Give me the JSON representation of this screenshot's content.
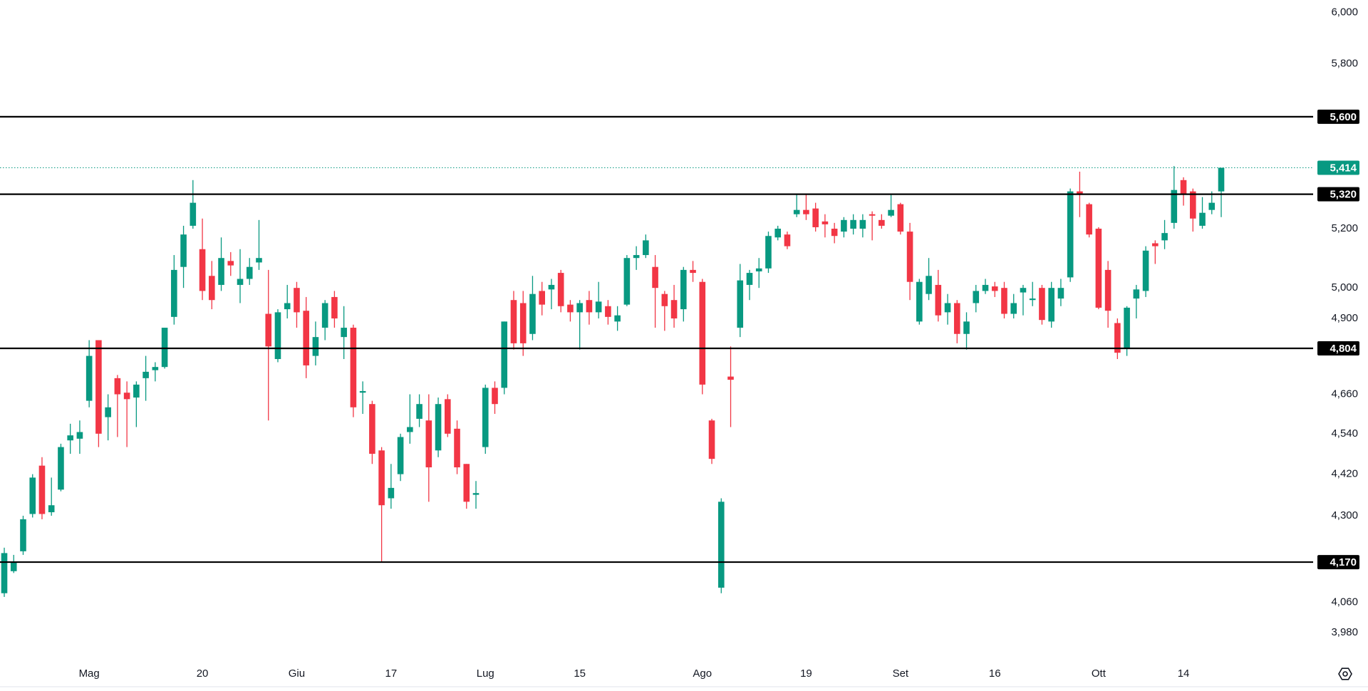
{
  "chart_data": {
    "type": "candlestick",
    "log_scale": true,
    "up_color": "#089981",
    "down_color": "#f23645",
    "level_color": "#000000",
    "last_price_color": "#089981",
    "ylim": [
      3900,
      6050
    ],
    "yticks": [
      {
        "value": 6000,
        "label": "6,000"
      },
      {
        "value": 5800,
        "label": "5,800"
      },
      {
        "value": 5200,
        "label": "5,200"
      },
      {
        "value": 5000,
        "label": "5,000"
      },
      {
        "value": 4900,
        "label": "4,900"
      },
      {
        "value": 4660,
        "label": "4,660"
      },
      {
        "value": 4540,
        "label": "4,540"
      },
      {
        "value": 4420,
        "label": "4,420"
      },
      {
        "value": 4300,
        "label": "4,300"
      },
      {
        "value": 4060,
        "label": "4,060"
      },
      {
        "value": 3980,
        "label": "3,980"
      }
    ],
    "levels": [
      {
        "value": 5600,
        "label": "5,600"
      },
      {
        "value": 5320,
        "label": "5,320"
      },
      {
        "value": 4804,
        "label": "4,804"
      },
      {
        "value": 4170,
        "label": "4,170"
      }
    ],
    "last_price": {
      "value": 5414,
      "label": "5,414"
    },
    "categories": [
      null,
      null,
      null,
      null,
      null,
      null,
      null,
      null,
      null,
      "Mag",
      null,
      null,
      null,
      null,
      null,
      null,
      null,
      null,
      null,
      null,
      null,
      "20",
      null,
      null,
      null,
      null,
      null,
      null,
      null,
      null,
      null,
      "Giu",
      null,
      null,
      null,
      null,
      null,
      null,
      null,
      null,
      null,
      "17",
      null,
      null,
      null,
      null,
      null,
      null,
      null,
      null,
      null,
      "Lug",
      null,
      null,
      null,
      null,
      null,
      null,
      null,
      null,
      null,
      "15",
      null,
      null,
      null,
      null,
      null,
      null,
      null,
      null,
      null,
      null,
      null,
      null,
      "Ago",
      null,
      null,
      null,
      null,
      null,
      null,
      null,
      null,
      null,
      null,
      "19",
      null,
      null,
      null,
      null,
      null,
      null,
      null,
      null,
      null,
      "Set",
      null,
      null,
      null,
      null,
      null,
      null,
      null,
      null,
      null,
      "16",
      null,
      null,
      null,
      null,
      null,
      null,
      null,
      null,
      null,
      null,
      "Ott",
      null,
      null,
      null,
      null,
      null,
      null,
      null,
      null,
      "14",
      null,
      null,
      null,
      null
    ],
    "open": [
      4085,
      4145,
      4200,
      4305,
      4445,
      4310,
      4375,
      4520,
      4525,
      4640,
      4830,
      4590,
      4710,
      4665,
      4650,
      4710,
      4735,
      4745,
      4905,
      5070,
      5210,
      5130,
      5040,
      5010,
      5090,
      5010,
      5030,
      5085,
      4915,
      4770,
      4930,
      5000,
      4925,
      4780,
      4870,
      4970,
      4840,
      4870,
      4665,
      4630,
      4490,
      4350,
      4420,
      4545,
      4585,
      4580,
      4490,
      4645,
      4555,
      4450,
      4360,
      4500,
      4680,
      4680,
      4960,
      4950,
      4850,
      4990,
      4995,
      5050,
      4945,
      4920,
      4960,
      4920,
      4940,
      4890,
      4945,
      5100,
      5110,
      5070,
      4980,
      4960,
      4930,
      5060,
      5020,
      4580,
      4100,
      4715,
      4870,
      5010,
      5055,
      5065,
      5170,
      5180,
      5250,
      5265,
      5270,
      5225,
      5200,
      5190,
      5200,
      5200,
      5250,
      5230,
      5245,
      5285,
      5190,
      4890,
      4980,
      5010,
      4920,
      4950,
      4850,
      4950,
      4990,
      5005,
      5000,
      4915,
      4985,
      4960,
      5000,
      4890,
      4965,
      5035,
      5330,
      5285,
      5200,
      5060,
      4885,
      4805,
      4965,
      4990,
      5150,
      5160,
      5220,
      5370,
      5330,
      5210,
      5265,
      5330
    ],
    "high": [
      4210,
      4190,
      4300,
      4420,
      4470,
      4410,
      4510,
      4570,
      4580,
      4830,
      4830,
      4660,
      4720,
      4700,
      4700,
      4780,
      4760,
      4870,
      5110,
      5210,
      5370,
      5235,
      5090,
      5170,
      5120,
      5130,
      5100,
      5230,
      5060,
      4930,
      5010,
      5020,
      4970,
      4890,
      4960,
      4990,
      4940,
      4880,
      4700,
      4640,
      4500,
      4450,
      4540,
      4660,
      4660,
      4660,
      4650,
      4660,
      4580,
      4450,
      4400,
      4690,
      4700,
      4890,
      4990,
      4990,
      5040,
      5020,
      5030,
      5060,
      4960,
      4960,
      4990,
      5020,
      4960,
      4940,
      5110,
      5140,
      5180,
      5110,
      4990,
      5010,
      5070,
      5090,
      5030,
      4585,
      4350,
      4810,
      5080,
      5060,
      5100,
      5190,
      5210,
      5190,
      5320,
      5320,
      5290,
      5250,
      5220,
      5240,
      5250,
      5250,
      5260,
      5250,
      5320,
      5290,
      5220,
      5030,
      5100,
      5060,
      4980,
      4960,
      4920,
      5010,
      5030,
      5020,
      5020,
      4980,
      5010,
      5020,
      5010,
      5020,
      5030,
      5340,
      5400,
      5290,
      5205,
      5090,
      4900,
      4940,
      5010,
      5140,
      5160,
      5230,
      5420,
      5380,
      5340,
      5310,
      5330,
      5414
    ],
    "low": [
      4075,
      4140,
      4190,
      4295,
      4290,
      4300,
      4370,
      4480,
      4480,
      4620,
      4500,
      4520,
      4530,
      4500,
      4560,
      4640,
      4700,
      4740,
      4880,
      5000,
      5200,
      4960,
      4930,
      4990,
      5040,
      4950,
      5010,
      5060,
      4580,
      4760,
      4900,
      4870,
      4710,
      4750,
      4830,
      4870,
      4770,
      4590,
      4600,
      4450,
      4170,
      4320,
      4400,
      4510,
      4560,
      4340,
      4470,
      4530,
      4420,
      4320,
      4320,
      4480,
      4600,
      4660,
      4800,
      4780,
      4830,
      4910,
      4930,
      4920,
      4890,
      4800,
      4880,
      4900,
      4880,
      4860,
      4940,
      5060,
      5100,
      4870,
      4860,
      4870,
      4890,
      5020,
      4660,
      4450,
      4085,
      4560,
      4840,
      4960,
      5000,
      5050,
      5160,
      5130,
      5240,
      5230,
      5190,
      5170,
      5150,
      5170,
      5180,
      5170,
      5160,
      5200,
      5240,
      5180,
      4960,
      4880,
      4960,
      4890,
      4880,
      4820,
      4800,
      4920,
      4980,
      4970,
      4900,
      4900,
      4910,
      4940,
      4880,
      4870,
      4940,
      5020,
      5240,
      5170,
      4930,
      4870,
      4770,
      4780,
      4900,
      4970,
      5080,
      5130,
      5200,
      5280,
      5190,
      5200,
      5250,
      5240
    ],
    "close": [
      4195,
      4170,
      4290,
      4410,
      4305,
      4330,
      4500,
      4535,
      4545,
      4780,
      4540,
      4620,
      4660,
      4645,
      4690,
      4730,
      4745,
      4870,
      5060,
      5180,
      5290,
      4990,
      4960,
      5100,
      5075,
      5030,
      5070,
      5100,
      4810,
      4920,
      4950,
      4920,
      4750,
      4840,
      4950,
      4900,
      4870,
      4620,
      4670,
      4480,
      4330,
      4380,
      4530,
      4560,
      4630,
      4440,
      4630,
      4540,
      4440,
      4340,
      4365,
      4680,
      4630,
      4890,
      4820,
      4820,
      4980,
      4945,
      5010,
      4940,
      4920,
      4950,
      4920,
      4955,
      4905,
      4910,
      5100,
      5110,
      5160,
      5000,
      4940,
      4900,
      5060,
      5050,
      4690,
      4465,
      4340,
      4705,
      5025,
      5050,
      5065,
      5175,
      5200,
      5140,
      5265,
      5250,
      5205,
      5215,
      5175,
      5230,
      5230,
      5230,
      5245,
      5210,
      5265,
      5190,
      5020,
      5020,
      5040,
      4910,
      4950,
      4850,
      4890,
      4990,
      5010,
      4990,
      4915,
      4950,
      5000,
      4965,
      4895,
      5000,
      5000,
      5330,
      5320,
      5180,
      4935,
      4925,
      4790,
      4935,
      4995,
      5125,
      5140,
      5185,
      5335,
      5320,
      5235,
      5255,
      5290,
      5414
    ]
  }
}
